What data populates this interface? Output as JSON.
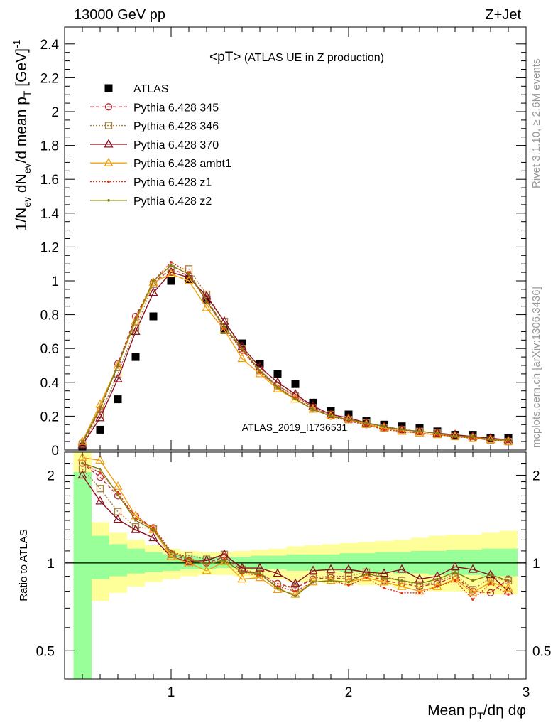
{
  "header": {
    "left": "13000 GeV pp",
    "right": "Z+Jet"
  },
  "side_labels": {
    "rivet": "Rivet 3.1.10, ≥ 2.6M events",
    "mcplots": "mcplots.cern.ch [arXiv:1306.3436]"
  },
  "chart_data": [
    {
      "type": "scatter",
      "title_main": "<pT>",
      "title_sub": " (ATLAS UE in Z production)",
      "watermark": "ATLAS_2019_I1736531",
      "ylabel": "1/N_ev dN_ev/d mean p_T [GeV]^-1",
      "xlim": [
        0.4,
        3.0
      ],
      "ylim": [
        0,
        2.5
      ],
      "yticks": [
        0,
        0.2,
        0.4,
        0.6,
        0.8,
        1,
        1.2,
        1.4,
        1.6,
        1.8,
        2,
        2.2,
        2.4
      ],
      "ytick_labels": [
        "0",
        "0.2",
        "0.4",
        "0.6",
        "0.8",
        "1",
        "1.2",
        "1.4",
        "1.6",
        "1.8",
        "2",
        "2.2",
        "2.4"
      ],
      "grid": false,
      "legend_position": "top-left",
      "x": [
        0.5,
        0.6,
        0.7,
        0.8,
        0.9,
        1.0,
        1.1,
        1.2,
        1.3,
        1.4,
        1.5,
        1.6,
        1.7,
        1.8,
        1.9,
        2.0,
        2.1,
        2.2,
        2.3,
        2.4,
        2.5,
        2.6,
        2.7,
        2.8,
        2.9
      ],
      "series": [
        {
          "name": "ATLAS",
          "color": "#000000",
          "marker": "square-filled",
          "line": "none",
          "values": [
            0.02,
            0.12,
            0.3,
            0.55,
            0.79,
            1.0,
            1.01,
            0.89,
            0.71,
            0.63,
            0.51,
            0.45,
            0.39,
            0.28,
            0.23,
            0.21,
            0.17,
            0.15,
            0.14,
            0.13,
            0.11,
            0.09,
            0.09,
            0.07,
            0.07
          ]
        },
        {
          "name": "Pythia 6.428 345",
          "color": "#c0303a",
          "marker": "circle-open",
          "line": "dashed",
          "values": [
            0.04,
            0.24,
            0.51,
            0.79,
            0.99,
            1.07,
            1.03,
            0.89,
            0.73,
            0.59,
            0.47,
            0.38,
            0.32,
            0.25,
            0.2,
            0.18,
            0.15,
            0.13,
            0.12,
            0.11,
            0.1,
            0.08,
            0.07,
            0.06,
            0.05
          ]
        },
        {
          "name": "Pythia 6.428 346",
          "color": "#a8803c",
          "marker": "square-open",
          "line": "dotted",
          "values": [
            0.035,
            0.21,
            0.45,
            0.72,
            0.98,
            1.07,
            1.07,
            0.92,
            0.76,
            0.6,
            0.47,
            0.38,
            0.32,
            0.25,
            0.21,
            0.18,
            0.16,
            0.13,
            0.12,
            0.11,
            0.1,
            0.08,
            0.07,
            0.06,
            0.05
          ]
        },
        {
          "name": "Pythia 6.428 370",
          "color": "#8b1020",
          "marker": "triangle-open",
          "line": "solid",
          "values": [
            0.03,
            0.19,
            0.42,
            0.7,
            0.93,
            1.05,
            1.02,
            0.91,
            0.76,
            0.61,
            0.49,
            0.4,
            0.33,
            0.26,
            0.21,
            0.19,
            0.16,
            0.14,
            0.12,
            0.11,
            0.1,
            0.09,
            0.08,
            0.07,
            0.06
          ]
        },
        {
          "name": "Pythia 6.428 ambt1",
          "color": "#f0a010",
          "marker": "triangle-open",
          "line": "solid",
          "values": [
            0.05,
            0.27,
            0.5,
            0.76,
            0.99,
            1.04,
            1.0,
            0.84,
            0.71,
            0.54,
            0.45,
            0.36,
            0.3,
            0.24,
            0.2,
            0.18,
            0.15,
            0.13,
            0.11,
            0.1,
            0.09,
            0.08,
            0.07,
            0.06,
            0.05
          ]
        },
        {
          "name": "Pythia 6.428 z1",
          "color": "#e03010",
          "marker": "dot",
          "line": "dotted",
          "values": [
            0.04,
            0.24,
            0.5,
            0.78,
            1.0,
            1.11,
            1.05,
            0.88,
            0.72,
            0.59,
            0.46,
            0.37,
            0.31,
            0.24,
            0.2,
            0.17,
            0.15,
            0.12,
            0.11,
            0.1,
            0.09,
            0.08,
            0.07,
            0.06,
            0.05
          ]
        },
        {
          "name": "Pythia 6.428 z2",
          "color": "#808010",
          "marker": "dot",
          "line": "solid",
          "values": [
            0.045,
            0.25,
            0.5,
            0.77,
            1.0,
            1.09,
            1.04,
            0.88,
            0.73,
            0.6,
            0.47,
            0.37,
            0.3,
            0.24,
            0.2,
            0.18,
            0.16,
            0.14,
            0.12,
            0.11,
            0.1,
            0.08,
            0.08,
            0.06,
            0.06
          ]
        }
      ]
    },
    {
      "type": "line",
      "ylabel": "Ratio to ATLAS",
      "xlabel": "Mean p_T/dη dφ",
      "xlim": [
        0.4,
        3.0
      ],
      "ylim": [
        0.4,
        2.4
      ],
      "log_y": true,
      "xticks": [
        1,
        2,
        3
      ],
      "xtick_labels": [
        "1",
        "2",
        "3"
      ],
      "yticks": [
        0.5,
        1,
        2
      ],
      "ytick_labels": [
        "0.5",
        "1",
        "2"
      ],
      "reference_line": 1,
      "uncertainty_bins": [
        0.45,
        0.55,
        0.65,
        0.75,
        0.85,
        0.95,
        1.05,
        1.15,
        1.25,
        1.35,
        1.45,
        1.55,
        1.65,
        1.75,
        1.85,
        1.95,
        2.05,
        2.15,
        2.25,
        2.35,
        2.45,
        2.55,
        2.65,
        2.75,
        2.85,
        2.95
      ],
      "band_inner_green": {
        "low": [
          0.3,
          0.88,
          0.9,
          0.92,
          0.93,
          0.94,
          0.95,
          0.95,
          0.96,
          0.96,
          0.95,
          0.95,
          0.94,
          0.94,
          0.94,
          0.93,
          0.93,
          0.93,
          0.92,
          0.92,
          0.91,
          0.91,
          0.91,
          0.9,
          0.9
        ],
        "high": [
          2.05,
          1.24,
          1.16,
          1.12,
          1.09,
          1.07,
          1.06,
          1.05,
          1.05,
          1.05,
          1.06,
          1.06,
          1.07,
          1.07,
          1.07,
          1.08,
          1.08,
          1.09,
          1.09,
          1.1,
          1.1,
          1.11,
          1.11,
          1.12,
          1.12
        ]
      },
      "band_outer_yellow": {
        "low": [
          0.3,
          0.74,
          0.79,
          0.83,
          0.86,
          0.88,
          0.9,
          0.91,
          0.91,
          0.9,
          0.89,
          0.88,
          0.86,
          0.86,
          0.85,
          0.85,
          0.84,
          0.84,
          0.82,
          0.82,
          0.8,
          0.8,
          0.79,
          0.78,
          0.78
        ],
        "high": [
          2.4,
          1.38,
          1.27,
          1.2,
          1.15,
          1.12,
          1.1,
          1.09,
          1.09,
          1.1,
          1.11,
          1.12,
          1.14,
          1.15,
          1.16,
          1.17,
          1.18,
          1.19,
          1.2,
          1.22,
          1.24,
          1.25,
          1.25,
          1.27,
          1.29
        ]
      },
      "x": [
        0.5,
        0.6,
        0.7,
        0.8,
        0.9,
        1.0,
        1.1,
        1.2,
        1.3,
        1.4,
        1.5,
        1.6,
        1.7,
        1.8,
        1.9,
        2.0,
        2.1,
        2.2,
        2.3,
        2.4,
        2.5,
        2.6,
        2.7,
        2.8,
        2.9
      ],
      "series": [
        {
          "name": "Pythia 6.428 345",
          "color": "#c0303a",
          "marker": "circle-open",
          "line": "dashed",
          "values": [
            2.2,
            1.97,
            1.7,
            1.45,
            1.32,
            1.07,
            1.02,
            1.0,
            1.05,
            0.94,
            0.92,
            0.85,
            0.82,
            0.88,
            0.89,
            0.88,
            0.91,
            0.87,
            0.85,
            0.83,
            0.85,
            0.9,
            0.8,
            0.79,
            0.88
          ]
        },
        {
          "name": "Pythia 6.428 346",
          "color": "#a8803c",
          "marker": "square-open",
          "line": "dotted",
          "values": [
            2.1,
            1.8,
            1.5,
            1.33,
            1.31,
            1.07,
            1.06,
            1.03,
            1.07,
            0.95,
            0.92,
            0.84,
            0.82,
            0.89,
            0.9,
            0.9,
            0.93,
            0.9,
            0.87,
            0.84,
            0.86,
            0.92,
            0.81,
            0.89,
            0.87
          ]
        },
        {
          "name": "Pythia 6.428 370",
          "color": "#8b1020",
          "marker": "triangle-open",
          "line": "solid",
          "values": [
            2.0,
            1.63,
            1.41,
            1.3,
            1.22,
            1.05,
            1.01,
            1.02,
            1.07,
            0.96,
            0.96,
            0.92,
            0.85,
            0.94,
            0.95,
            0.95,
            0.93,
            0.92,
            0.95,
            0.88,
            0.9,
            0.97,
            0.95,
            0.91,
            0.8
          ]
        },
        {
          "name": "Pythia 6.428 ambt1",
          "color": "#f0a010",
          "marker": "triangle-open",
          "line": "solid",
          "values": [
            2.3,
            2.25,
            1.83,
            1.45,
            1.3,
            1.05,
            1.0,
            0.94,
            1.01,
            0.88,
            0.89,
            0.81,
            0.78,
            0.86,
            0.87,
            0.86,
            0.89,
            0.86,
            0.83,
            0.8,
            0.83,
            0.88,
            0.79,
            0.86,
            0.82
          ]
        },
        {
          "name": "Pythia 6.428 z1",
          "color": "#e03010",
          "marker": "dot",
          "line": "dotted",
          "values": [
            2.2,
            2.04,
            1.75,
            1.42,
            1.32,
            1.1,
            1.04,
            0.99,
            1.03,
            0.92,
            0.91,
            0.83,
            0.8,
            0.86,
            0.87,
            0.84,
            0.89,
            0.82,
            0.79,
            0.79,
            0.83,
            0.87,
            0.75,
            0.85,
            0.78
          ]
        },
        {
          "name": "Pythia 6.428 z2",
          "color": "#808010",
          "marker": "dot",
          "line": "solid",
          "values": [
            2.2,
            2.1,
            1.72,
            1.4,
            1.3,
            1.09,
            1.03,
            0.99,
            1.02,
            0.93,
            0.92,
            0.82,
            0.77,
            0.86,
            0.87,
            0.86,
            0.92,
            0.89,
            0.87,
            0.85,
            0.88,
            0.93,
            0.87,
            0.91,
            0.87
          ]
        }
      ]
    }
  ]
}
